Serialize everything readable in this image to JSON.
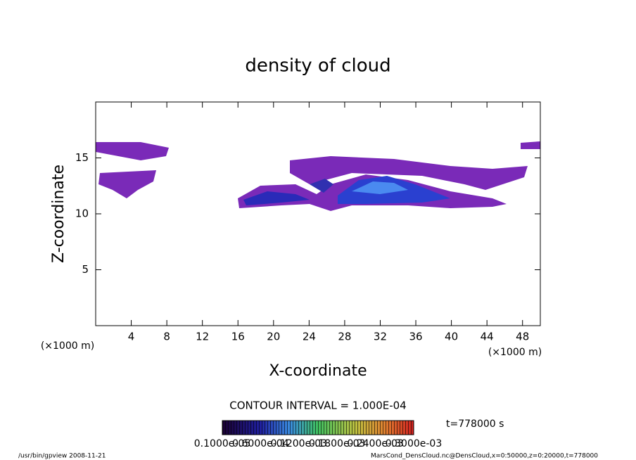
{
  "chart_data": {
    "type": "contour",
    "title": "density of cloud",
    "x_label": "X-coordinate",
    "y_label": "Z-coordinate",
    "x_unit_left": "(×1000 m)",
    "x_unit_right": "(×1000 m)",
    "xlim": [
      0,
      50
    ],
    "xticks": [
      4,
      8,
      12,
      16,
      20,
      24,
      28,
      32,
      36,
      40,
      44,
      48
    ],
    "ylim": [
      0,
      20
    ],
    "yticks": [
      5,
      10,
      15
    ],
    "contour_interval": "CONTOUR INTERVAL = 1.000E-04",
    "time_label": "t=778000 s",
    "colorbar_labels": [
      "0.1000e-05",
      "0.6000e-04",
      "0.1200e-03",
      "0.1800e-03",
      "0.2400e-03",
      "0.3000e-03"
    ],
    "footer_left": "/usr/bin/gpview   2008-11-21",
    "footer_right": "MarsCond_DensCloud.nc@DensCloud,x=0:50000,z=0:20000,t=778000"
  }
}
